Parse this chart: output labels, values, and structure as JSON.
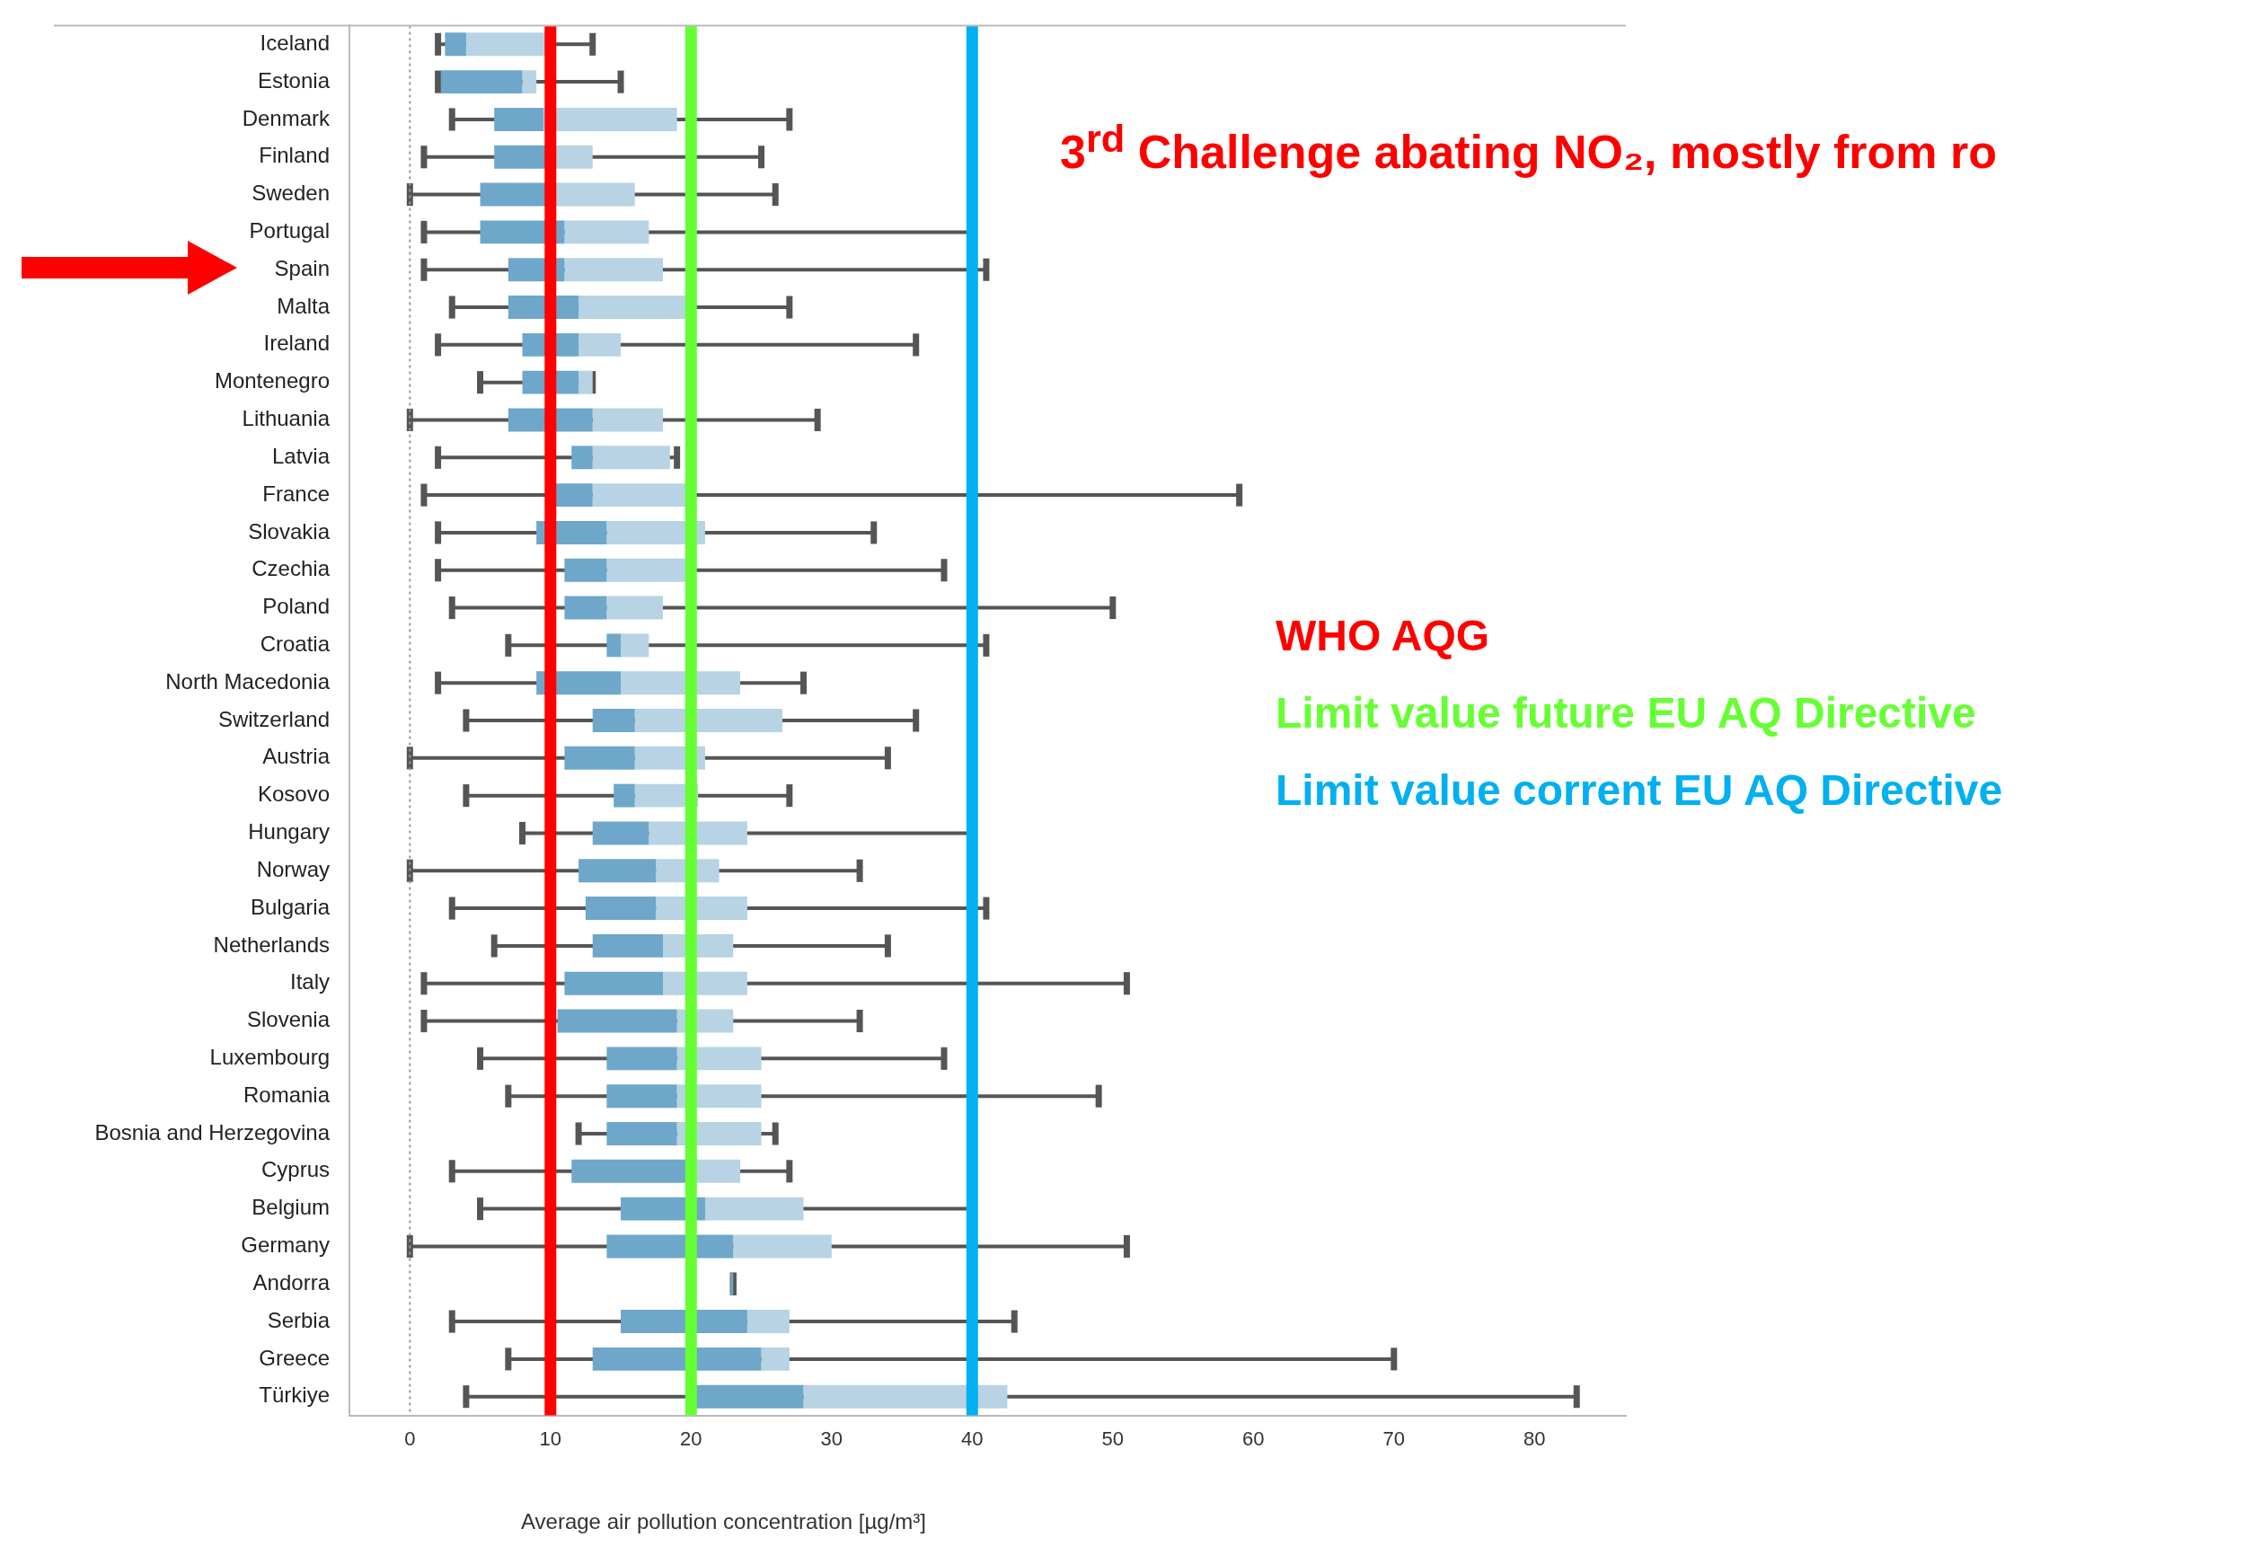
{
  "chart_data": {
    "type": "box",
    "orientation": "horizontal",
    "title": "3$^{rd}$ Challenge abating NO₂, mostly from ro",
    "xlabel": "Average air pollution concentration [µg/m³]",
    "categories": [
      "Iceland",
      "Estonia",
      "Denmark",
      "Finland",
      "Sweden",
      "Portugal",
      "Spain",
      "Malta",
      "Ireland",
      "Montenegro",
      "Lithuania",
      "Latvia",
      "France",
      "Slovakia",
      "Czechia",
      "Poland",
      "Croatia",
      "North Macedonia",
      "Switzerland",
      "Austria",
      "Kosovo",
      "Hungary",
      "Norway",
      "Bulgaria",
      "Netherlands",
      "Italy",
      "Slovenia",
      "Luxembourg",
      "Romania",
      "Bosnia and Herzegovina",
      "Cyprus",
      "Belgium",
      "Germany",
      "Andorra",
      "Serbia",
      "Greece",
      "Türkiye"
    ],
    "series": [
      {
        "color": "#6ea7c9",
        "boxes": [
          {
            "low": 2,
            "q1": 2.5,
            "median": 4,
            "q3": 10,
            "high": 13
          },
          {
            "low": 2,
            "q1": 2.2,
            "median": 8,
            "q3": 9,
            "high": 15
          },
          {
            "low": 3,
            "q1": 6,
            "median": 9.5,
            "q3": 19,
            "high": 27
          },
          {
            "low": 1,
            "q1": 6,
            "median": 10,
            "q3": 13,
            "high": 25
          },
          {
            "low": 0,
            "q1": 5,
            "median": 10,
            "q3": 16,
            "high": 26
          },
          {
            "low": 1,
            "q1": 5,
            "median": 11,
            "q3": 17,
            "high": 40
          },
          {
            "low": 1,
            "q1": 7,
            "median": 11,
            "q3": 18,
            "high": 41
          },
          {
            "low": 3,
            "q1": 7,
            "median": 12,
            "q3": 20,
            "high": 27
          },
          {
            "low": 2,
            "q1": 8,
            "median": 12,
            "q3": 15,
            "high": 36
          },
          {
            "low": 5,
            "q1": 8,
            "median": 12,
            "q3": 13,
            "high": 13
          },
          {
            "low": 0,
            "q1": 7,
            "median": 13,
            "q3": 18,
            "high": 29
          },
          {
            "low": 2,
            "q1": 11.5,
            "median": 13,
            "q3": 18.5,
            "high": 19
          },
          {
            "low": 1,
            "q1": 10,
            "median": 13,
            "q3": 20,
            "high": 59
          },
          {
            "low": 2,
            "q1": 9,
            "median": 14,
            "q3": 21,
            "high": 33
          },
          {
            "low": 2,
            "q1": 11,
            "median": 14,
            "q3": 20,
            "high": 38
          },
          {
            "low": 3,
            "q1": 11,
            "median": 14,
            "q3": 18,
            "high": 50
          },
          {
            "low": 7,
            "q1": 14,
            "median": 15,
            "q3": 17,
            "high": 41
          },
          {
            "low": 2,
            "q1": 9,
            "median": 15,
            "q3": 23.5,
            "high": 28
          },
          {
            "low": 4,
            "q1": 13,
            "median": 16,
            "q3": 26.5,
            "high": 36
          },
          {
            "low": 0,
            "q1": 11,
            "median": 16,
            "q3": 21,
            "high": 34
          },
          {
            "low": 4,
            "q1": 14.5,
            "median": 16,
            "q3": 20.5,
            "high": 27
          },
          {
            "low": 8,
            "q1": 13,
            "median": 17,
            "q3": 24,
            "high": 40
          },
          {
            "low": 0,
            "q1": 12,
            "median": 17.5,
            "q3": 22,
            "high": 32
          },
          {
            "low": 3,
            "q1": 12.5,
            "median": 17.5,
            "q3": 24,
            "high": 41
          },
          {
            "low": 6,
            "q1": 13,
            "median": 18,
            "q3": 23,
            "high": 34
          },
          {
            "low": 1,
            "q1": 11,
            "median": 18,
            "q3": 24,
            "high": 51
          },
          {
            "low": 1,
            "q1": 10.5,
            "median": 19,
            "q3": 23,
            "high": 32
          },
          {
            "low": 5,
            "q1": 14,
            "median": 19,
            "q3": 25,
            "high": 38
          },
          {
            "low": 7,
            "q1": 14,
            "median": 19,
            "q3": 25,
            "high": 49
          },
          {
            "low": 12,
            "q1": 14,
            "median": 19,
            "q3": 25,
            "high": 26
          },
          {
            "low": 3,
            "q1": 11.5,
            "median": 20,
            "q3": 23.5,
            "high": 27
          },
          {
            "low": 5,
            "q1": 15,
            "median": 21,
            "q3": 28,
            "high": 40
          },
          {
            "low": 0,
            "q1": 14,
            "median": 23,
            "q3": 30,
            "high": 51
          },
          {
            "low": 23,
            "q1": 23,
            "median": 23,
            "q3": 23,
            "high": 23
          },
          {
            "low": 3,
            "q1": 15,
            "median": 24,
            "q3": 27,
            "high": 43
          },
          {
            "low": 7,
            "q1": 13,
            "median": 25,
            "q3": 27,
            "high": 70
          },
          {
            "low": 4,
            "q1": 20,
            "median": 28,
            "q3": 42.5,
            "high": 83
          }
        ]
      }
    ],
    "xlim": [
      -4.3,
      86.5
    ],
    "xticks": [
      0,
      10,
      20,
      30,
      40,
      50,
      60,
      70,
      80
    ],
    "ref_lines": [
      {
        "axis": "x",
        "value": 0,
        "color": "#999999",
        "line_style": "dotted"
      },
      {
        "axis": "x",
        "value": 10,
        "label": "WHO AQG",
        "color": "#ff0000"
      },
      {
        "axis": "x",
        "value": 20,
        "label": "Limit value future EU AQ Directive",
        "color": "#66ff33"
      },
      {
        "axis": "x",
        "value": 40,
        "label": "Limit value corrent EU AQ Directive",
        "color": "#00b0f0"
      }
    ]
  }
}
